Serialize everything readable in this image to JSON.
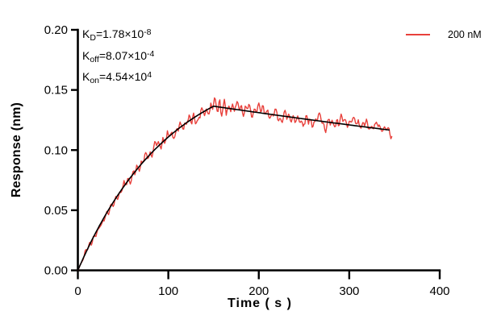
{
  "chart_data": {
    "type": "line",
    "title": "",
    "xlabel": "Time ( s )",
    "ylabel": "Response (nm)",
    "xlim": [
      0,
      400
    ],
    "ylim": [
      0,
      0.2
    ],
    "xtick_values": [
      0,
      100,
      200,
      300,
      400
    ],
    "xtick_labels": [
      "0",
      "100",
      "200",
      "300",
      "400"
    ],
    "ytick_values": [
      0,
      0.05,
      0.1,
      0.15,
      0.2
    ],
    "ytick_labels": [
      "0.00",
      "0.05",
      "0.10",
      "0.15",
      "0.20"
    ],
    "grid": false,
    "legend_position": "top-right",
    "annotations": [
      {
        "base": "K",
        "sub": "D",
        "rest": "=1.78×10",
        "sup": "-8"
      },
      {
        "base": "K",
        "sub": "off",
        "rest": "=8.07×10",
        "sup": "-4"
      },
      {
        "base": "K",
        "sub": "on",
        "rest": "=4.54×10",
        "sup": "4"
      }
    ],
    "series": [
      {
        "name": "200 nM",
        "role": "measured-trace",
        "color": "#e8403b",
        "line_width": 1.4,
        "model": "exp-association-then-dissociation",
        "t_start_s": 0,
        "t_switch_s": 150,
        "t_end_s": 347,
        "k_obs_per_s": 0.00989,
        "k_off_per_s": 0.000807,
        "response_at_switch_nm": 0.1365,
        "noise_amplitude_nm": 0.005,
        "peak_noise_extra_nm": 0.008,
        "peak_noise_center_s": 161,
        "noise_seed": 42
      },
      {
        "name": "fit",
        "role": "fitted-curve",
        "color": "#000000",
        "line_width": 1.6,
        "model": "exp-association-then-dissociation",
        "t_start_s": 0,
        "t_switch_s": 150,
        "t_end_s": 344,
        "k_obs_per_s": 0.00989,
        "k_off_per_s": 0.000807,
        "response_at_switch_nm": 0.1365,
        "noise_amplitude_nm": 0,
        "peak_noise_extra_nm": 0,
        "peak_noise_center_s": 0,
        "noise_seed": 0
      }
    ]
  }
}
